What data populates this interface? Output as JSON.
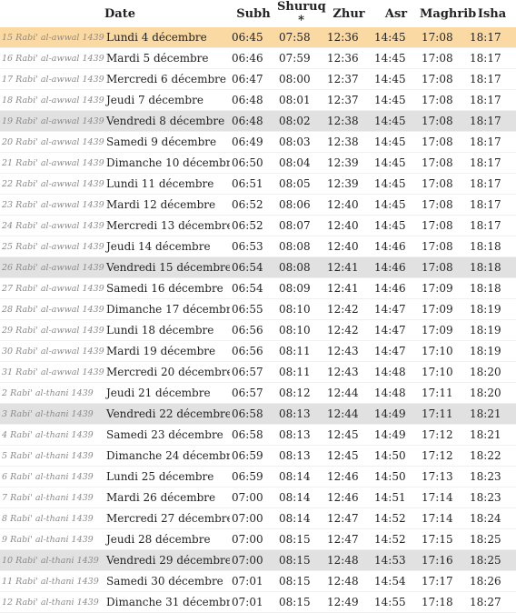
{
  "headers": {
    "hijri": "",
    "date": "Date",
    "subh": "Subh",
    "shuruq": "Shuruq *",
    "zhur": "Zhur",
    "asr": "Asr",
    "maghrib": "Maghrib",
    "isha": "Isha"
  },
  "rows": [
    {
      "hijri": "15 Rabi' al-awwal 1439",
      "date": "Lundi 4 décembre",
      "subh": "06:45",
      "shuruq": "07:58",
      "zhur": "12:36",
      "asr": "14:45",
      "maghrib": "17:08",
      "isha": "18:17",
      "style": "today"
    },
    {
      "hijri": "16 Rabi' al-awwal 1439",
      "date": "Mardi 5 décembre",
      "subh": "06:46",
      "shuruq": "07:59",
      "zhur": "12:36",
      "asr": "14:45",
      "maghrib": "17:08",
      "isha": "18:17",
      "style": ""
    },
    {
      "hijri": "17 Rabi' al-awwal 1439",
      "date": "Mercredi 6 décembre",
      "subh": "06:47",
      "shuruq": "08:00",
      "zhur": "12:37",
      "asr": "14:45",
      "maghrib": "17:08",
      "isha": "18:17",
      "style": ""
    },
    {
      "hijri": "18 Rabi' al-awwal 1439",
      "date": "Jeudi 7 décembre",
      "subh": "06:48",
      "shuruq": "08:01",
      "zhur": "12:37",
      "asr": "14:45",
      "maghrib": "17:08",
      "isha": "18:17",
      "style": ""
    },
    {
      "hijri": "19 Rabi' al-awwal 1439",
      "date": "Vendredi 8 décembre",
      "subh": "06:48",
      "shuruq": "08:02",
      "zhur": "12:38",
      "asr": "14:45",
      "maghrib": "17:08",
      "isha": "18:17",
      "style": "friday"
    },
    {
      "hijri": "20 Rabi' al-awwal 1439",
      "date": "Samedi 9 décembre",
      "subh": "06:49",
      "shuruq": "08:03",
      "zhur": "12:38",
      "asr": "14:45",
      "maghrib": "17:08",
      "isha": "18:17",
      "style": ""
    },
    {
      "hijri": "21 Rabi' al-awwal 1439",
      "date": "Dimanche 10 décembre",
      "subh": "06:50",
      "shuruq": "08:04",
      "zhur": "12:39",
      "asr": "14:45",
      "maghrib": "17:08",
      "isha": "18:17",
      "style": ""
    },
    {
      "hijri": "22 Rabi' al-awwal 1439",
      "date": "Lundi 11 décembre",
      "subh": "06:51",
      "shuruq": "08:05",
      "zhur": "12:39",
      "asr": "14:45",
      "maghrib": "17:08",
      "isha": "18:17",
      "style": ""
    },
    {
      "hijri": "23 Rabi' al-awwal 1439",
      "date": "Mardi 12 décembre",
      "subh": "06:52",
      "shuruq": "08:06",
      "zhur": "12:40",
      "asr": "14:45",
      "maghrib": "17:08",
      "isha": "18:17",
      "style": ""
    },
    {
      "hijri": "24 Rabi' al-awwal 1439",
      "date": "Mercredi 13 décembre",
      "subh": "06:52",
      "shuruq": "08:07",
      "zhur": "12:40",
      "asr": "14:45",
      "maghrib": "17:08",
      "isha": "18:17",
      "style": ""
    },
    {
      "hijri": "25 Rabi' al-awwal 1439",
      "date": "Jeudi 14 décembre",
      "subh": "06:53",
      "shuruq": "08:08",
      "zhur": "12:40",
      "asr": "14:46",
      "maghrib": "17:08",
      "isha": "18:18",
      "style": ""
    },
    {
      "hijri": "26 Rabi' al-awwal 1439",
      "date": "Vendredi 15 décembre",
      "subh": "06:54",
      "shuruq": "08:08",
      "zhur": "12:41",
      "asr": "14:46",
      "maghrib": "17:08",
      "isha": "18:18",
      "style": "friday"
    },
    {
      "hijri": "27 Rabi' al-awwal 1439",
      "date": "Samedi 16 décembre",
      "subh": "06:54",
      "shuruq": "08:09",
      "zhur": "12:41",
      "asr": "14:46",
      "maghrib": "17:09",
      "isha": "18:18",
      "style": ""
    },
    {
      "hijri": "28 Rabi' al-awwal 1439",
      "date": "Dimanche 17 décembre",
      "subh": "06:55",
      "shuruq": "08:10",
      "zhur": "12:42",
      "asr": "14:47",
      "maghrib": "17:09",
      "isha": "18:19",
      "style": ""
    },
    {
      "hijri": "29 Rabi' al-awwal 1439",
      "date": "Lundi 18 décembre",
      "subh": "06:56",
      "shuruq": "08:10",
      "zhur": "12:42",
      "asr": "14:47",
      "maghrib": "17:09",
      "isha": "18:19",
      "style": ""
    },
    {
      "hijri": "30 Rabi' al-awwal 1439",
      "date": "Mardi 19 décembre",
      "subh": "06:56",
      "shuruq": "08:11",
      "zhur": "12:43",
      "asr": "14:47",
      "maghrib": "17:10",
      "isha": "18:19",
      "style": ""
    },
    {
      "hijri": "31 Rabi' al-awwal 1439",
      "date": "Mercredi 20 décembre",
      "subh": "06:57",
      "shuruq": "08:11",
      "zhur": "12:43",
      "asr": "14:48",
      "maghrib": "17:10",
      "isha": "18:20",
      "style": ""
    },
    {
      "hijri": "2 Rabi' al-thani 1439",
      "date": "Jeudi 21 décembre",
      "subh": "06:57",
      "shuruq": "08:12",
      "zhur": "12:44",
      "asr": "14:48",
      "maghrib": "17:11",
      "isha": "18:20",
      "style": ""
    },
    {
      "hijri": "3 Rabi' al-thani 1439",
      "date": "Vendredi 22 décembre",
      "subh": "06:58",
      "shuruq": "08:13",
      "zhur": "12:44",
      "asr": "14:49",
      "maghrib": "17:11",
      "isha": "18:21",
      "style": "friday"
    },
    {
      "hijri": "4 Rabi' al-thani 1439",
      "date": "Samedi 23 décembre",
      "subh": "06:58",
      "shuruq": "08:13",
      "zhur": "12:45",
      "asr": "14:49",
      "maghrib": "17:12",
      "isha": "18:21",
      "style": ""
    },
    {
      "hijri": "5 Rabi' al-thani 1439",
      "date": "Dimanche 24 décembre",
      "subh": "06:59",
      "shuruq": "08:13",
      "zhur": "12:45",
      "asr": "14:50",
      "maghrib": "17:12",
      "isha": "18:22",
      "style": ""
    },
    {
      "hijri": "6 Rabi' al-thani 1439",
      "date": "Lundi 25 décembre",
      "subh": "06:59",
      "shuruq": "08:14",
      "zhur": "12:46",
      "asr": "14:50",
      "maghrib": "17:13",
      "isha": "18:23",
      "style": ""
    },
    {
      "hijri": "7 Rabi' al-thani 1439",
      "date": "Mardi 26 décembre",
      "subh": "07:00",
      "shuruq": "08:14",
      "zhur": "12:46",
      "asr": "14:51",
      "maghrib": "17:14",
      "isha": "18:23",
      "style": ""
    },
    {
      "hijri": "8 Rabi' al-thani 1439",
      "date": "Mercredi 27 décembre",
      "subh": "07:00",
      "shuruq": "08:14",
      "zhur": "12:47",
      "asr": "14:52",
      "maghrib": "17:14",
      "isha": "18:24",
      "style": ""
    },
    {
      "hijri": "9 Rabi' al-thani 1439",
      "date": "Jeudi 28 décembre",
      "subh": "07:00",
      "shuruq": "08:15",
      "zhur": "12:47",
      "asr": "14:52",
      "maghrib": "17:15",
      "isha": "18:25",
      "style": ""
    },
    {
      "hijri": "10 Rabi' al-thani 1439",
      "date": "Vendredi 29 décembre",
      "subh": "07:00",
      "shuruq": "08:15",
      "zhur": "12:48",
      "asr": "14:53",
      "maghrib": "17:16",
      "isha": "18:25",
      "style": "friday"
    },
    {
      "hijri": "11 Rabi' al-thani 1439",
      "date": "Samedi 30 décembre",
      "subh": "07:01",
      "shuruq": "08:15",
      "zhur": "12:48",
      "asr": "14:54",
      "maghrib": "17:17",
      "isha": "18:26",
      "style": ""
    },
    {
      "hijri": "12 Rabi' al-thani 1439",
      "date": "Dimanche 31 décembre",
      "subh": "07:01",
      "shuruq": "08:15",
      "zhur": "12:49",
      "asr": "14:55",
      "maghrib": "17:18",
      "isha": "18:27",
      "style": ""
    }
  ]
}
